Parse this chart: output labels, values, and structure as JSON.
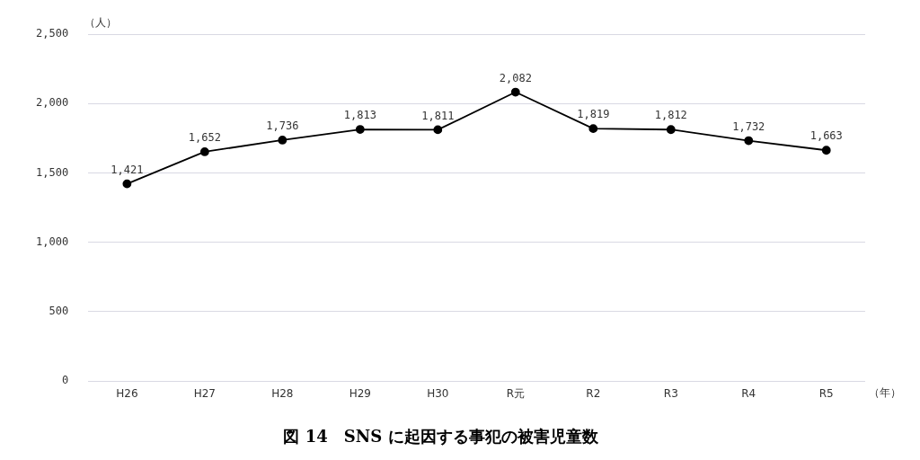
{
  "chart_data": {
    "type": "line",
    "title": "図 14　SNS に起因する事犯の被害児童数",
    "ylabel": "（人）",
    "xlabel": "（年）",
    "categories": [
      "H26",
      "H27",
      "H28",
      "H29",
      "H30",
      "R元",
      "R2",
      "R3",
      "R4",
      "R5"
    ],
    "series": [
      {
        "color": "#000000",
        "values": [
          1421,
          1652,
          1736,
          1813,
          1811,
          2082,
          1819,
          1812,
          1732,
          1663
        ],
        "value_labels": [
          "1,421",
          "1,652",
          "1,736",
          "1,813",
          "1,811",
          "2,082",
          "1,819",
          "1,812",
          "1,732",
          "1,663"
        ]
      }
    ],
    "ylim": [
      0,
      2500
    ],
    "yticks": [
      0,
      500,
      {
        "value": 1000,
        "label": "1,000"
      },
      {
        "value": 1500,
        "label": "1,500"
      },
      {
        "value": 2000,
        "label": "2,000"
      },
      {
        "value": 2500,
        "label": "2,500"
      }
    ],
    "grid": "y",
    "legend": false,
    "marker": "circle",
    "line_style": "solid"
  }
}
